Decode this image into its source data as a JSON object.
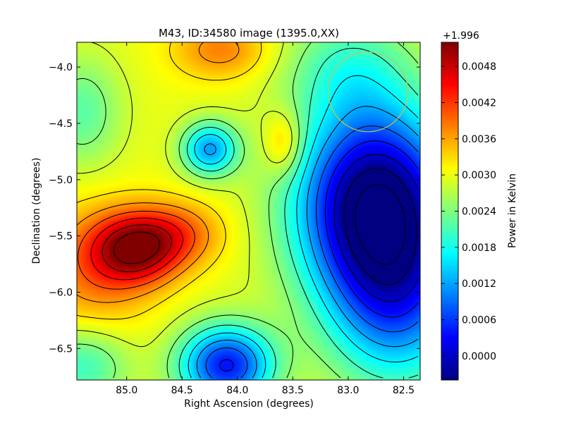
{
  "chart_data": {
    "type": "heatmap",
    "title": "M43, ID:34580 image (1395.0,XX)",
    "xlabel": "Right Ascension (degrees)",
    "ylabel": "Declination (degrees)",
    "xlim": [
      85.45,
      82.35
    ],
    "ylim": [
      -6.78,
      -3.78
    ],
    "x_ticks": [
      {
        "value": 85.0,
        "label": "85.0"
      },
      {
        "value": 84.5,
        "label": "84.5"
      },
      {
        "value": 84.0,
        "label": "84.0"
      },
      {
        "value": 83.5,
        "label": "83.5"
      },
      {
        "value": 83.0,
        "label": "83.0"
      },
      {
        "value": 82.5,
        "label": "82.5"
      }
    ],
    "y_ticks": [
      {
        "value": -4.0,
        "label": "−4.0"
      },
      {
        "value": -4.5,
        "label": "−4.5"
      },
      {
        "value": -5.0,
        "label": "−5.0"
      },
      {
        "value": -5.5,
        "label": "−5.5"
      },
      {
        "value": -6.0,
        "label": "−6.0"
      },
      {
        "value": -6.5,
        "label": "−6.5"
      }
    ],
    "colorbar": {
      "label": "Power in Kelvin",
      "offset_label": "+1.996",
      "range": [
        -0.0004,
        0.0052
      ],
      "colormap": "jet",
      "ticks": [
        {
          "value": 0.0048,
          "label": "0.0048"
        },
        {
          "value": 0.0042,
          "label": "0.0042"
        },
        {
          "value": 0.0036,
          "label": "0.0036"
        },
        {
          "value": 0.003,
          "label": "0.0030"
        },
        {
          "value": 0.0024,
          "label": "0.0024"
        },
        {
          "value": 0.0018,
          "label": "0.0018"
        },
        {
          "value": 0.0012,
          "label": "0.0012"
        },
        {
          "value": 0.0006,
          "label": "0.0006"
        },
        {
          "value": 0.0,
          "label": "0.0000"
        }
      ]
    },
    "background_level": 0.003,
    "features": [
      {
        "ra": 84.92,
        "dec": -5.62,
        "amplitude": 0.0019,
        "sigma_ra": 0.28,
        "sigma_dec": 0.22
      },
      {
        "ra": 84.55,
        "dec": -5.48,
        "amplitude": 0.0009,
        "sigma_ra": 0.3,
        "sigma_dec": 0.2
      },
      {
        "ra": 85.3,
        "dec": -5.8,
        "amplitude": 0.0008,
        "sigma_ra": 0.35,
        "sigma_dec": 0.4
      },
      {
        "ra": 84.25,
        "dec": -4.73,
        "amplitude": -0.0018,
        "sigma_ra": 0.18,
        "sigma_dec": 0.17
      },
      {
        "ra": 83.58,
        "dec": -4.68,
        "amplitude": 0.0008,
        "sigma_ra": 0.12,
        "sigma_dec": 0.2
      },
      {
        "ra": 84.15,
        "dec": -3.85,
        "amplitude": 0.0008,
        "sigma_ra": 0.3,
        "sigma_dec": 0.18
      },
      {
        "ra": 82.75,
        "dec": -5.2,
        "amplitude": -0.0036,
        "sigma_ra": 0.5,
        "sigma_dec": 0.6
      },
      {
        "ra": 82.55,
        "dec": -6.1,
        "amplitude": -0.0018,
        "sigma_ra": 0.45,
        "sigma_dec": 0.55
      },
      {
        "ra": 84.1,
        "dec": -6.65,
        "amplitude": -0.0026,
        "sigma_ra": 0.3,
        "sigma_dec": 0.25
      },
      {
        "ra": 85.4,
        "dec": -4.4,
        "amplitude": -0.0008,
        "sigma_ra": 0.25,
        "sigma_dec": 0.35
      },
      {
        "ra": 85.4,
        "dec": -6.65,
        "amplitude": -0.001,
        "sigma_ra": 0.3,
        "sigma_dec": 0.25
      },
      {
        "ra": 83.0,
        "dec": -4.0,
        "amplitude": -0.0008,
        "sigma_ra": 0.4,
        "sigma_dec": 0.35
      }
    ],
    "contour_count": 16,
    "circle": {
      "ra": 82.82,
      "dec": -4.22,
      "radius_deg": 0.36,
      "color": "#d4c23a"
    }
  }
}
